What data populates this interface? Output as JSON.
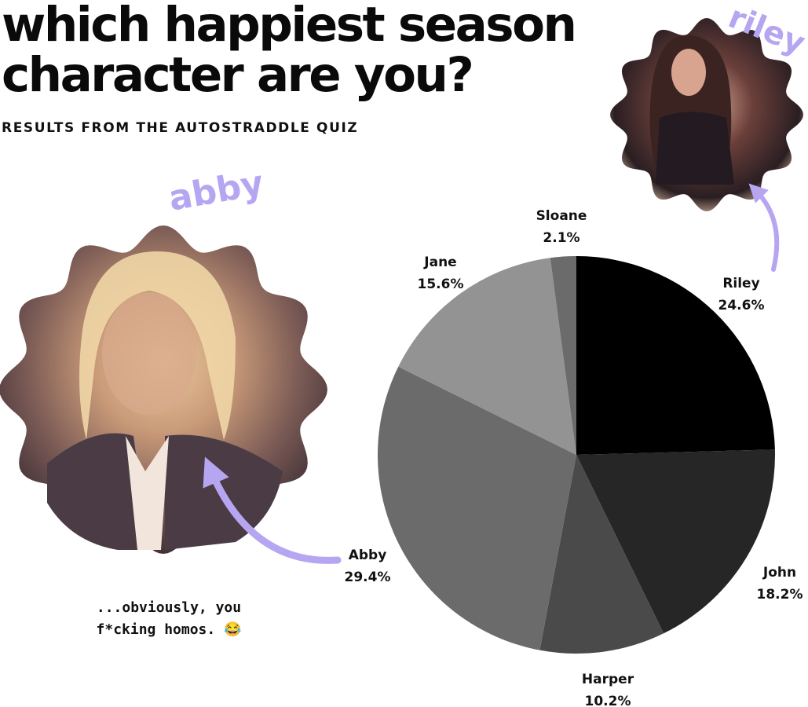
{
  "header": {
    "title_line1": "which happiest season",
    "title_line2": "character are you?",
    "subtitle": "RESULTS FROM THE AUTOSTRADDLE QUIZ"
  },
  "caption": {
    "line1": "...obviously, you",
    "line2": "f*cking homos. 😂"
  },
  "photos": {
    "abby_label": "abby",
    "riley_label": "riley"
  },
  "colors": {
    "accent": "#b6a6f2",
    "text": "#111111"
  },
  "chart_data": {
    "type": "pie",
    "start": "12 o'clock",
    "direction": "clockwise",
    "slices": [
      {
        "label": "Riley",
        "value": 24.6,
        "text": "24.6%",
        "color": "#000000"
      },
      {
        "label": "John",
        "value": 18.2,
        "text": "18.2%",
        "color": "#262626"
      },
      {
        "label": "Harper",
        "value": 10.2,
        "text": "10.2%",
        "color": "#4a4a4a"
      },
      {
        "label": "Abby",
        "value": 29.4,
        "text": "29.4%",
        "color": "#6b6b6b"
      },
      {
        "label": "Jane",
        "value": 15.6,
        "text": "15.6%",
        "color": "#939393"
      },
      {
        "label": "Sloane",
        "value": 2.1,
        "text": "2.1%",
        "color": "#6b6b6b"
      }
    ]
  }
}
